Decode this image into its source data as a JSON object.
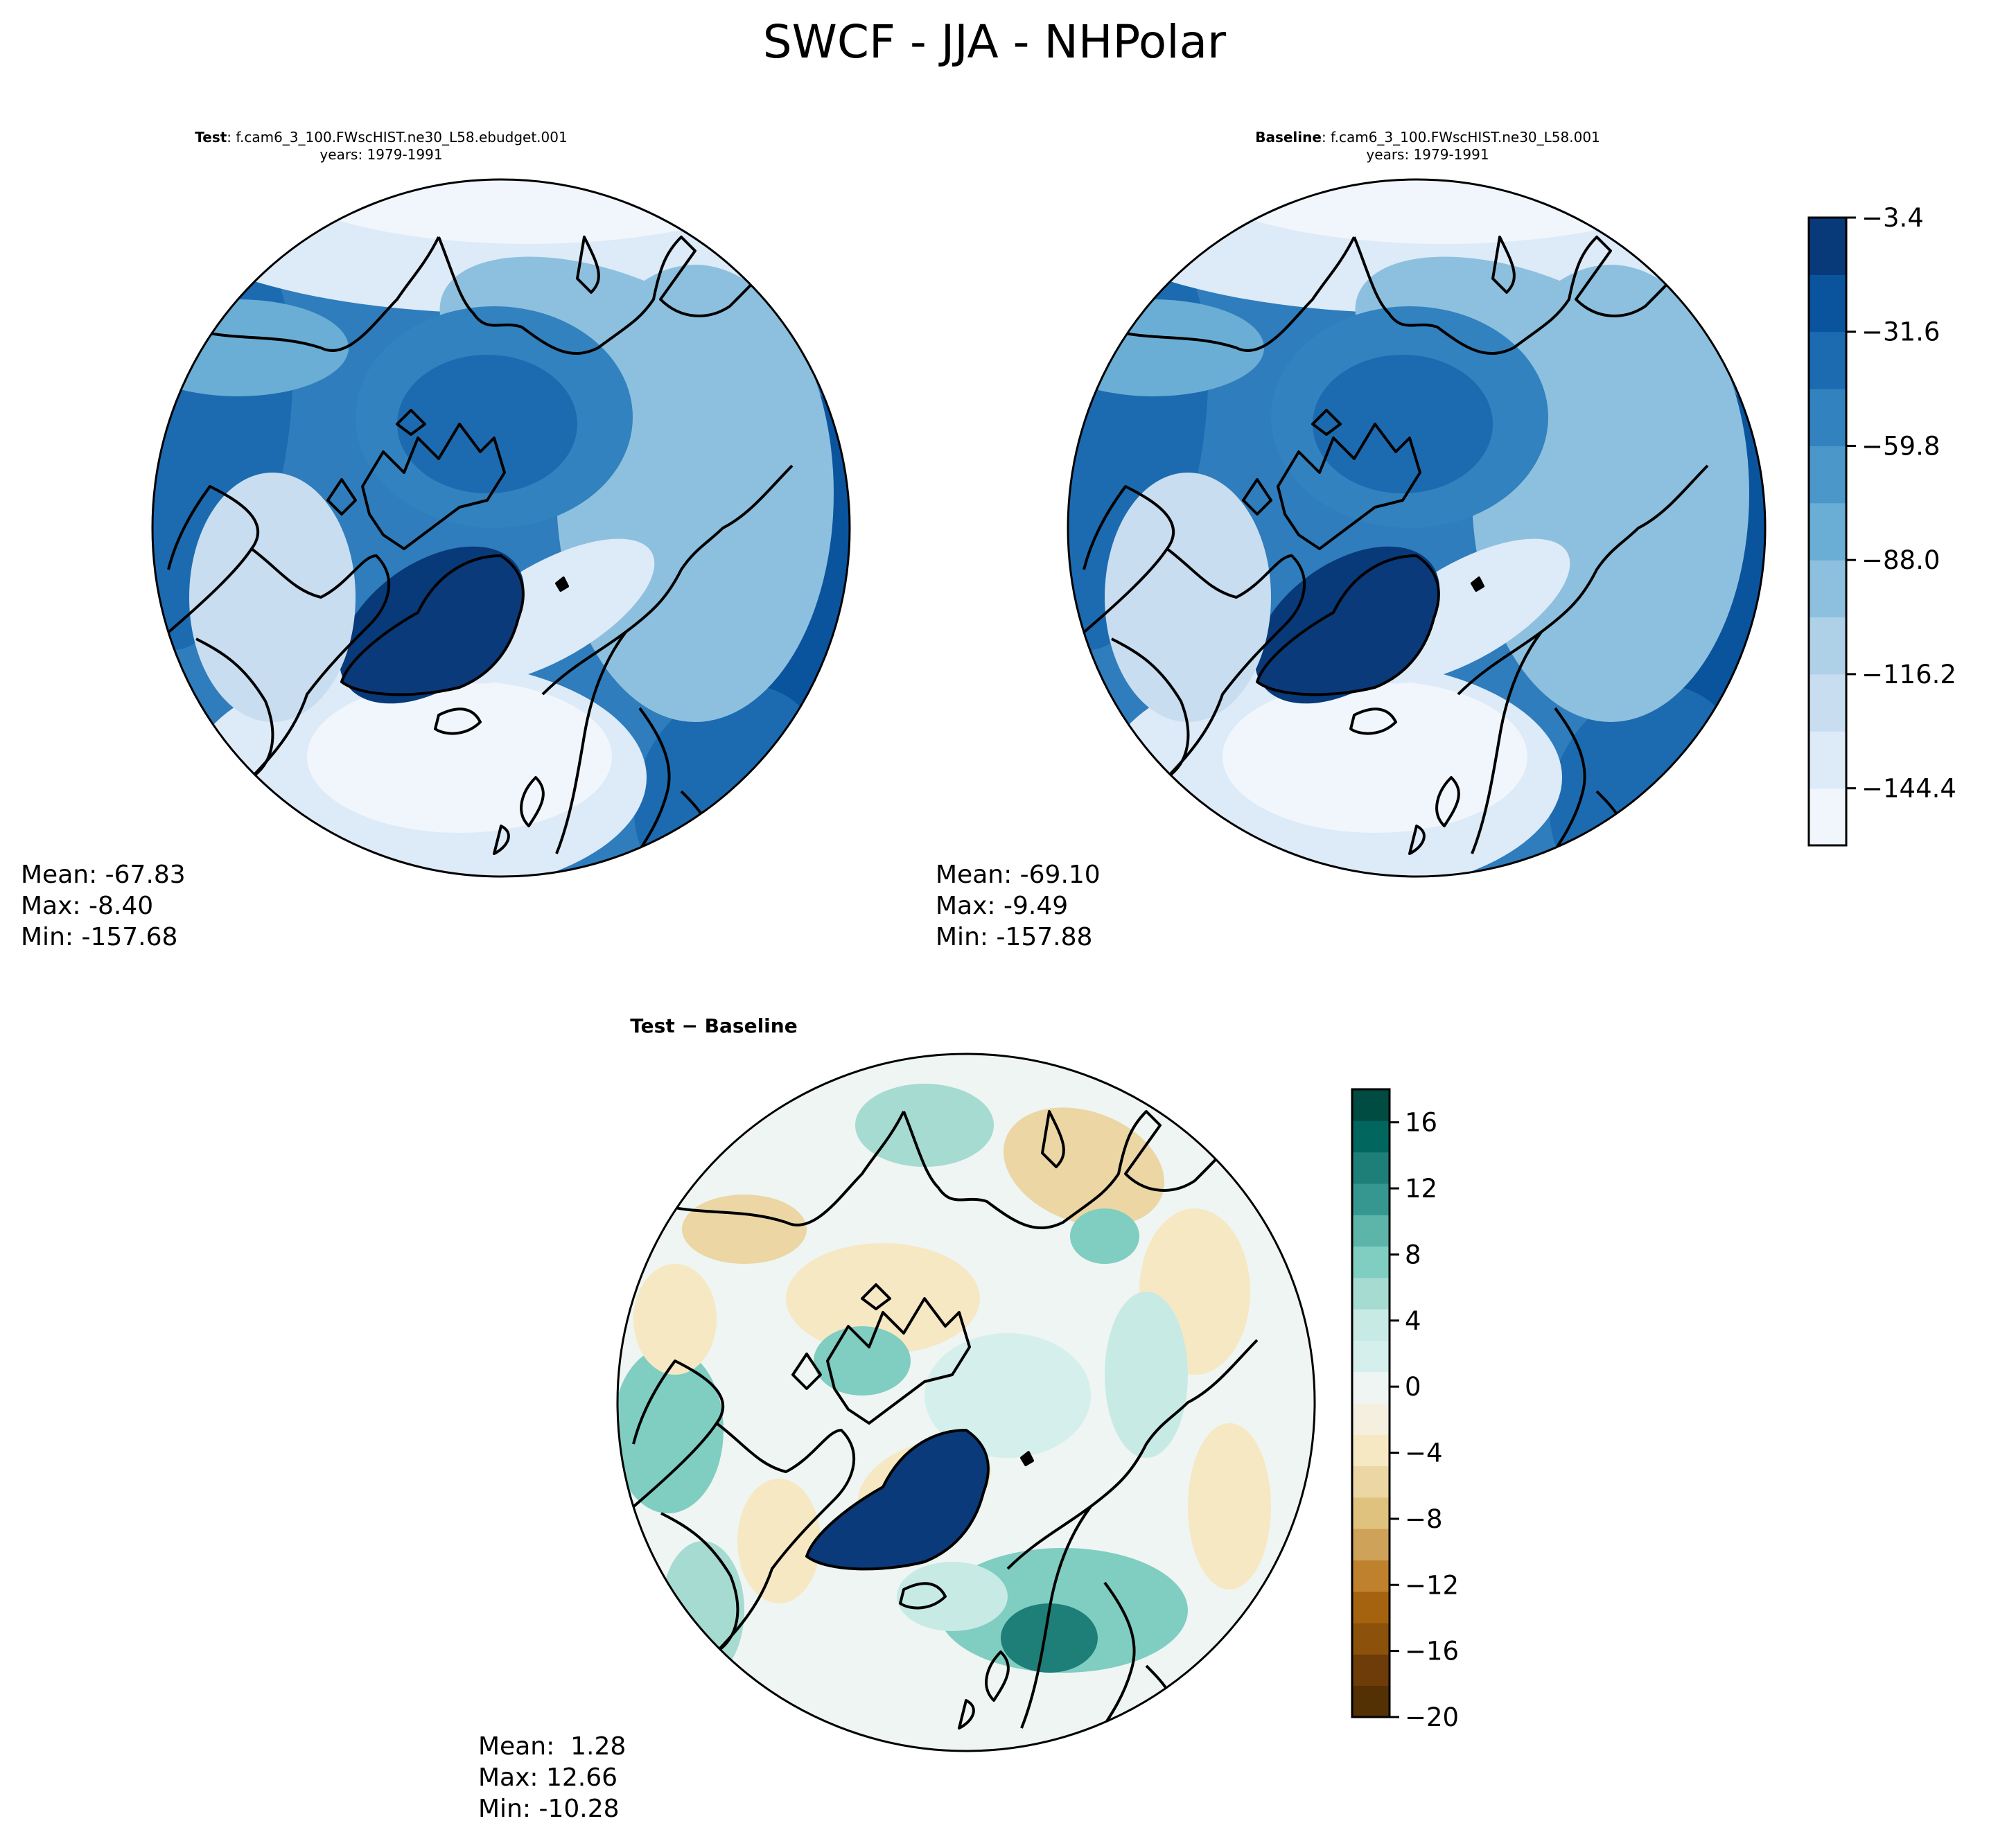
{
  "suptitle": "SWCF - JJA - NHPolar",
  "panels": {
    "test": {
      "title_bold": "Test",
      "title_rest": ": f.cam6_3_100.FWscHIST.ne30_L58.ebudget.001",
      "years": "years: 1979-1991",
      "mean": "Mean: -67.83",
      "max": "Max: -8.40",
      "min": "Min: -157.68"
    },
    "baseline": {
      "title_bold": "Baseline",
      "title_rest": ": f.cam6_3_100.FWscHIST.ne30_L58.001",
      "years": "years: 1979-1991",
      "mean": "Mean: -69.10",
      "max": "Max: -9.49",
      "min": "Min: -157.88"
    },
    "diff": {
      "title": "Test − Baseline",
      "mean": "Mean:  1.28",
      "max": "Max: 12.66",
      "min": "Min: -10.28"
    }
  },
  "colorbar_main": {
    "colormap": "Blues",
    "ticks": [
      "−3.4",
      "−31.6",
      "−59.8",
      "−88.0",
      "−116.2",
      "−144.4"
    ],
    "tick_values": [
      -3.4,
      -31.6,
      -59.8,
      -88.0,
      -116.2,
      -144.4
    ],
    "range": [
      -158.5,
      -3.4
    ],
    "colors": [
      "#f0f6fc",
      "#ddeaf7",
      "#c9ddf0",
      "#aed1e7",
      "#8dc0de",
      "#6aaed6",
      "#4b97c9",
      "#3282bf",
      "#1c6bb0",
      "#0a549e",
      "#083979"
    ]
  },
  "colorbar_diff": {
    "colormap": "BrBG",
    "ticks": [
      "16",
      "12",
      "8",
      "4",
      "0",
      "−4",
      "−8",
      "−12",
      "−16",
      "−20"
    ],
    "tick_values": [
      16,
      12,
      8,
      4,
      0,
      -4,
      -8,
      -12,
      -16,
      -20
    ],
    "range": [
      -20,
      18
    ],
    "colors": [
      "#543005",
      "#6d3c09",
      "#8c510a",
      "#a5630f",
      "#bf812d",
      "#cfa25a",
      "#dfc27d",
      "#ebd6a4",
      "#f6e8c3",
      "#f5efe0",
      "#eef5f3",
      "#d4efec",
      "#c7eae5",
      "#a5dbd1",
      "#80cdc1",
      "#5db5aa",
      "#35978f",
      "#1d7f77",
      "#01665e",
      "#004b42"
    ]
  }
}
